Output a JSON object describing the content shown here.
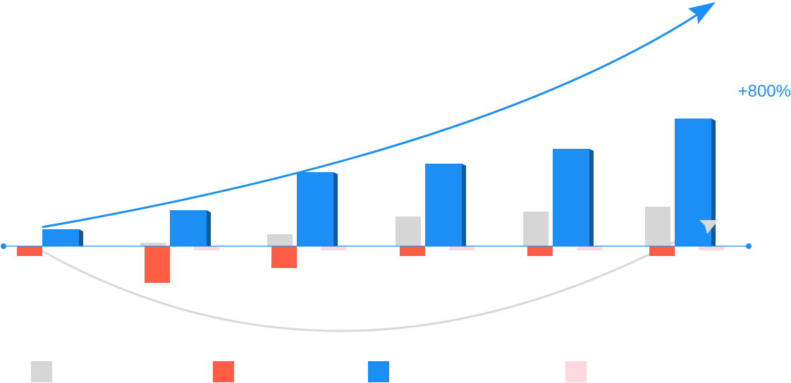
{
  "chart_data": {
    "type": "bar",
    "categories": [
      "",
      "",
      "",
      "",
      "",
      ""
    ],
    "series": [
      {
        "values": [
          0,
          5,
          17,
          42,
          49,
          56
        ],
        "color": "#d6d6d6"
      },
      {
        "values": [
          -14,
          -52,
          -31,
          -14,
          -14,
          -14
        ],
        "color": "#ff5c45"
      },
      {
        "values": [
          24,
          51,
          105,
          117,
          138,
          181
        ],
        "color": "#1b8ff5"
      },
      {
        "values": [
          0,
          -6,
          -6,
          -6,
          -6,
          -6
        ],
        "color": "#fdd8de"
      }
    ],
    "annotations": [
      {
        "text": "+800%",
        "color": "#1b8ff5"
      }
    ],
    "legend": {
      "placement": "bottom"
    },
    "grid": false,
    "axis_color": "#1b8ff5",
    "trend_up_color": "#1b8ff5",
    "trend_curve_color": "#d9d9d9"
  }
}
